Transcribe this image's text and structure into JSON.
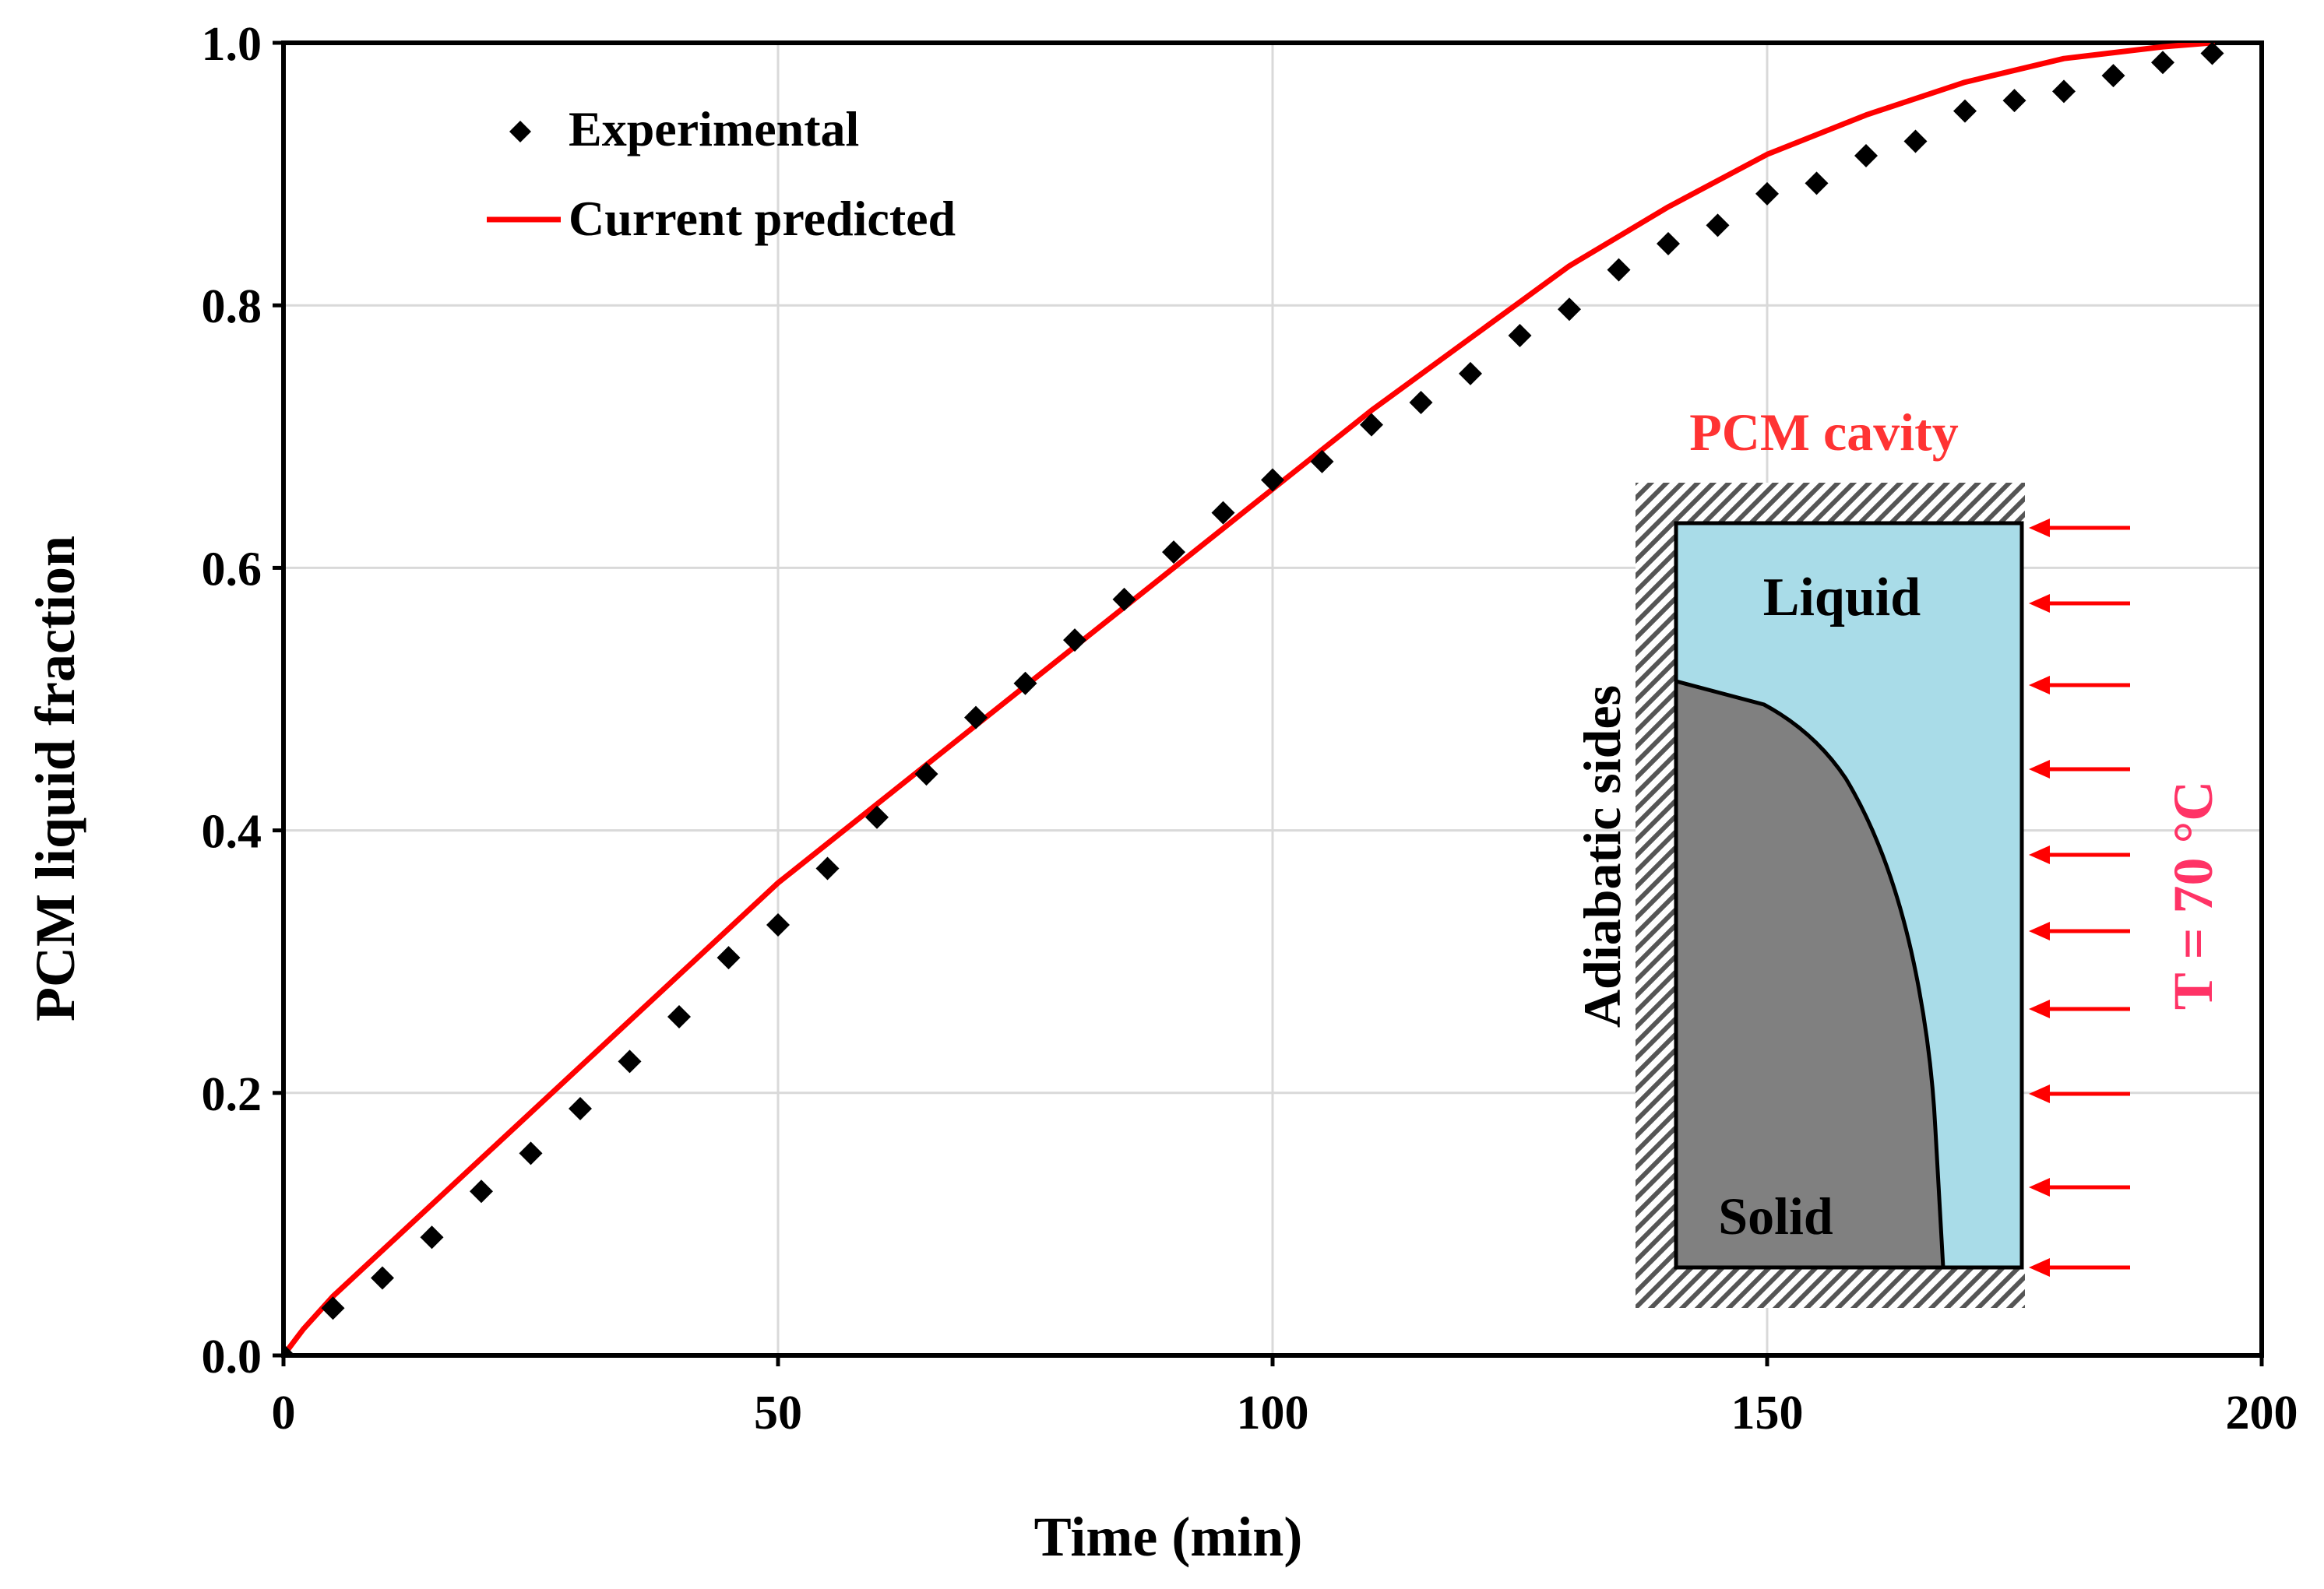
{
  "chart_data": {
    "type": "scatter",
    "title": "",
    "xlabel": "Time (min)",
    "ylabel": "PCM liquid fraction",
    "xlim": [
      0,
      200
    ],
    "ylim": [
      0,
      1.0
    ],
    "x_ticks": [
      0,
      50,
      100,
      150,
      200
    ],
    "y_ticks": [
      0.0,
      0.2,
      0.4,
      0.6,
      0.8,
      1.0
    ],
    "x_tick_labels": [
      "0",
      "50",
      "100",
      "150",
      "200"
    ],
    "y_tick_labels": [
      "0.0",
      "0.2",
      "0.4",
      "0.6",
      "0.8",
      "1.0"
    ],
    "grid": true,
    "legend_position": "top-left",
    "series": [
      {
        "name": "Experimental",
        "kind": "markers",
        "marker": "diamond",
        "color": "#000000",
        "x": [
          0,
          5,
          10,
          15,
          20,
          25,
          30,
          35,
          40,
          45,
          50,
          55,
          60,
          65,
          70,
          75,
          80,
          85,
          90,
          95,
          100,
          105,
          110,
          115,
          120,
          125,
          130,
          135,
          140,
          145,
          150,
          155,
          160,
          165,
          170,
          175,
          180,
          185,
          190,
          195
        ],
        "y": [
          0.0,
          0.036,
          0.059,
          0.09,
          0.125,
          0.154,
          0.188,
          0.224,
          0.258,
          0.303,
          0.328,
          0.371,
          0.41,
          0.443,
          0.486,
          0.512,
          0.545,
          0.576,
          0.612,
          0.642,
          0.667,
          0.681,
          0.709,
          0.726,
          0.748,
          0.777,
          0.797,
          0.827,
          0.847,
          0.861,
          0.885,
          0.893,
          0.914,
          0.925,
          0.948,
          0.956,
          0.963,
          0.975,
          0.985,
          0.992
        ]
      },
      {
        "name": "Current predicted",
        "kind": "line",
        "color": "#ff0000",
        "x": [
          0,
          2,
          5,
          10,
          20,
          30,
          40,
          50,
          60,
          70,
          80,
          90,
          100,
          110,
          120,
          130,
          140,
          150,
          160,
          170,
          180,
          190,
          195
        ],
        "y": [
          0.0,
          0.02,
          0.045,
          0.08,
          0.15,
          0.22,
          0.29,
          0.36,
          0.42,
          0.48,
          0.54,
          0.6,
          0.66,
          0.72,
          0.775,
          0.83,
          0.875,
          0.915,
          0.945,
          0.97,
          0.988,
          0.997,
          1.0
        ]
      }
    ],
    "inset": {
      "title": "PCM cavity",
      "liquid_label": "Liquid",
      "solid_label": "Solid",
      "adiabatic_label": "Adiabatic sides",
      "temperature_label": "T = 70 °C",
      "colors": {
        "title": "#ff3333",
        "liquid": "#a9dce8",
        "solid": "#808080",
        "arrow": "#ff0000",
        "temperature": "#ff3366",
        "hatch": "#555555"
      }
    }
  }
}
